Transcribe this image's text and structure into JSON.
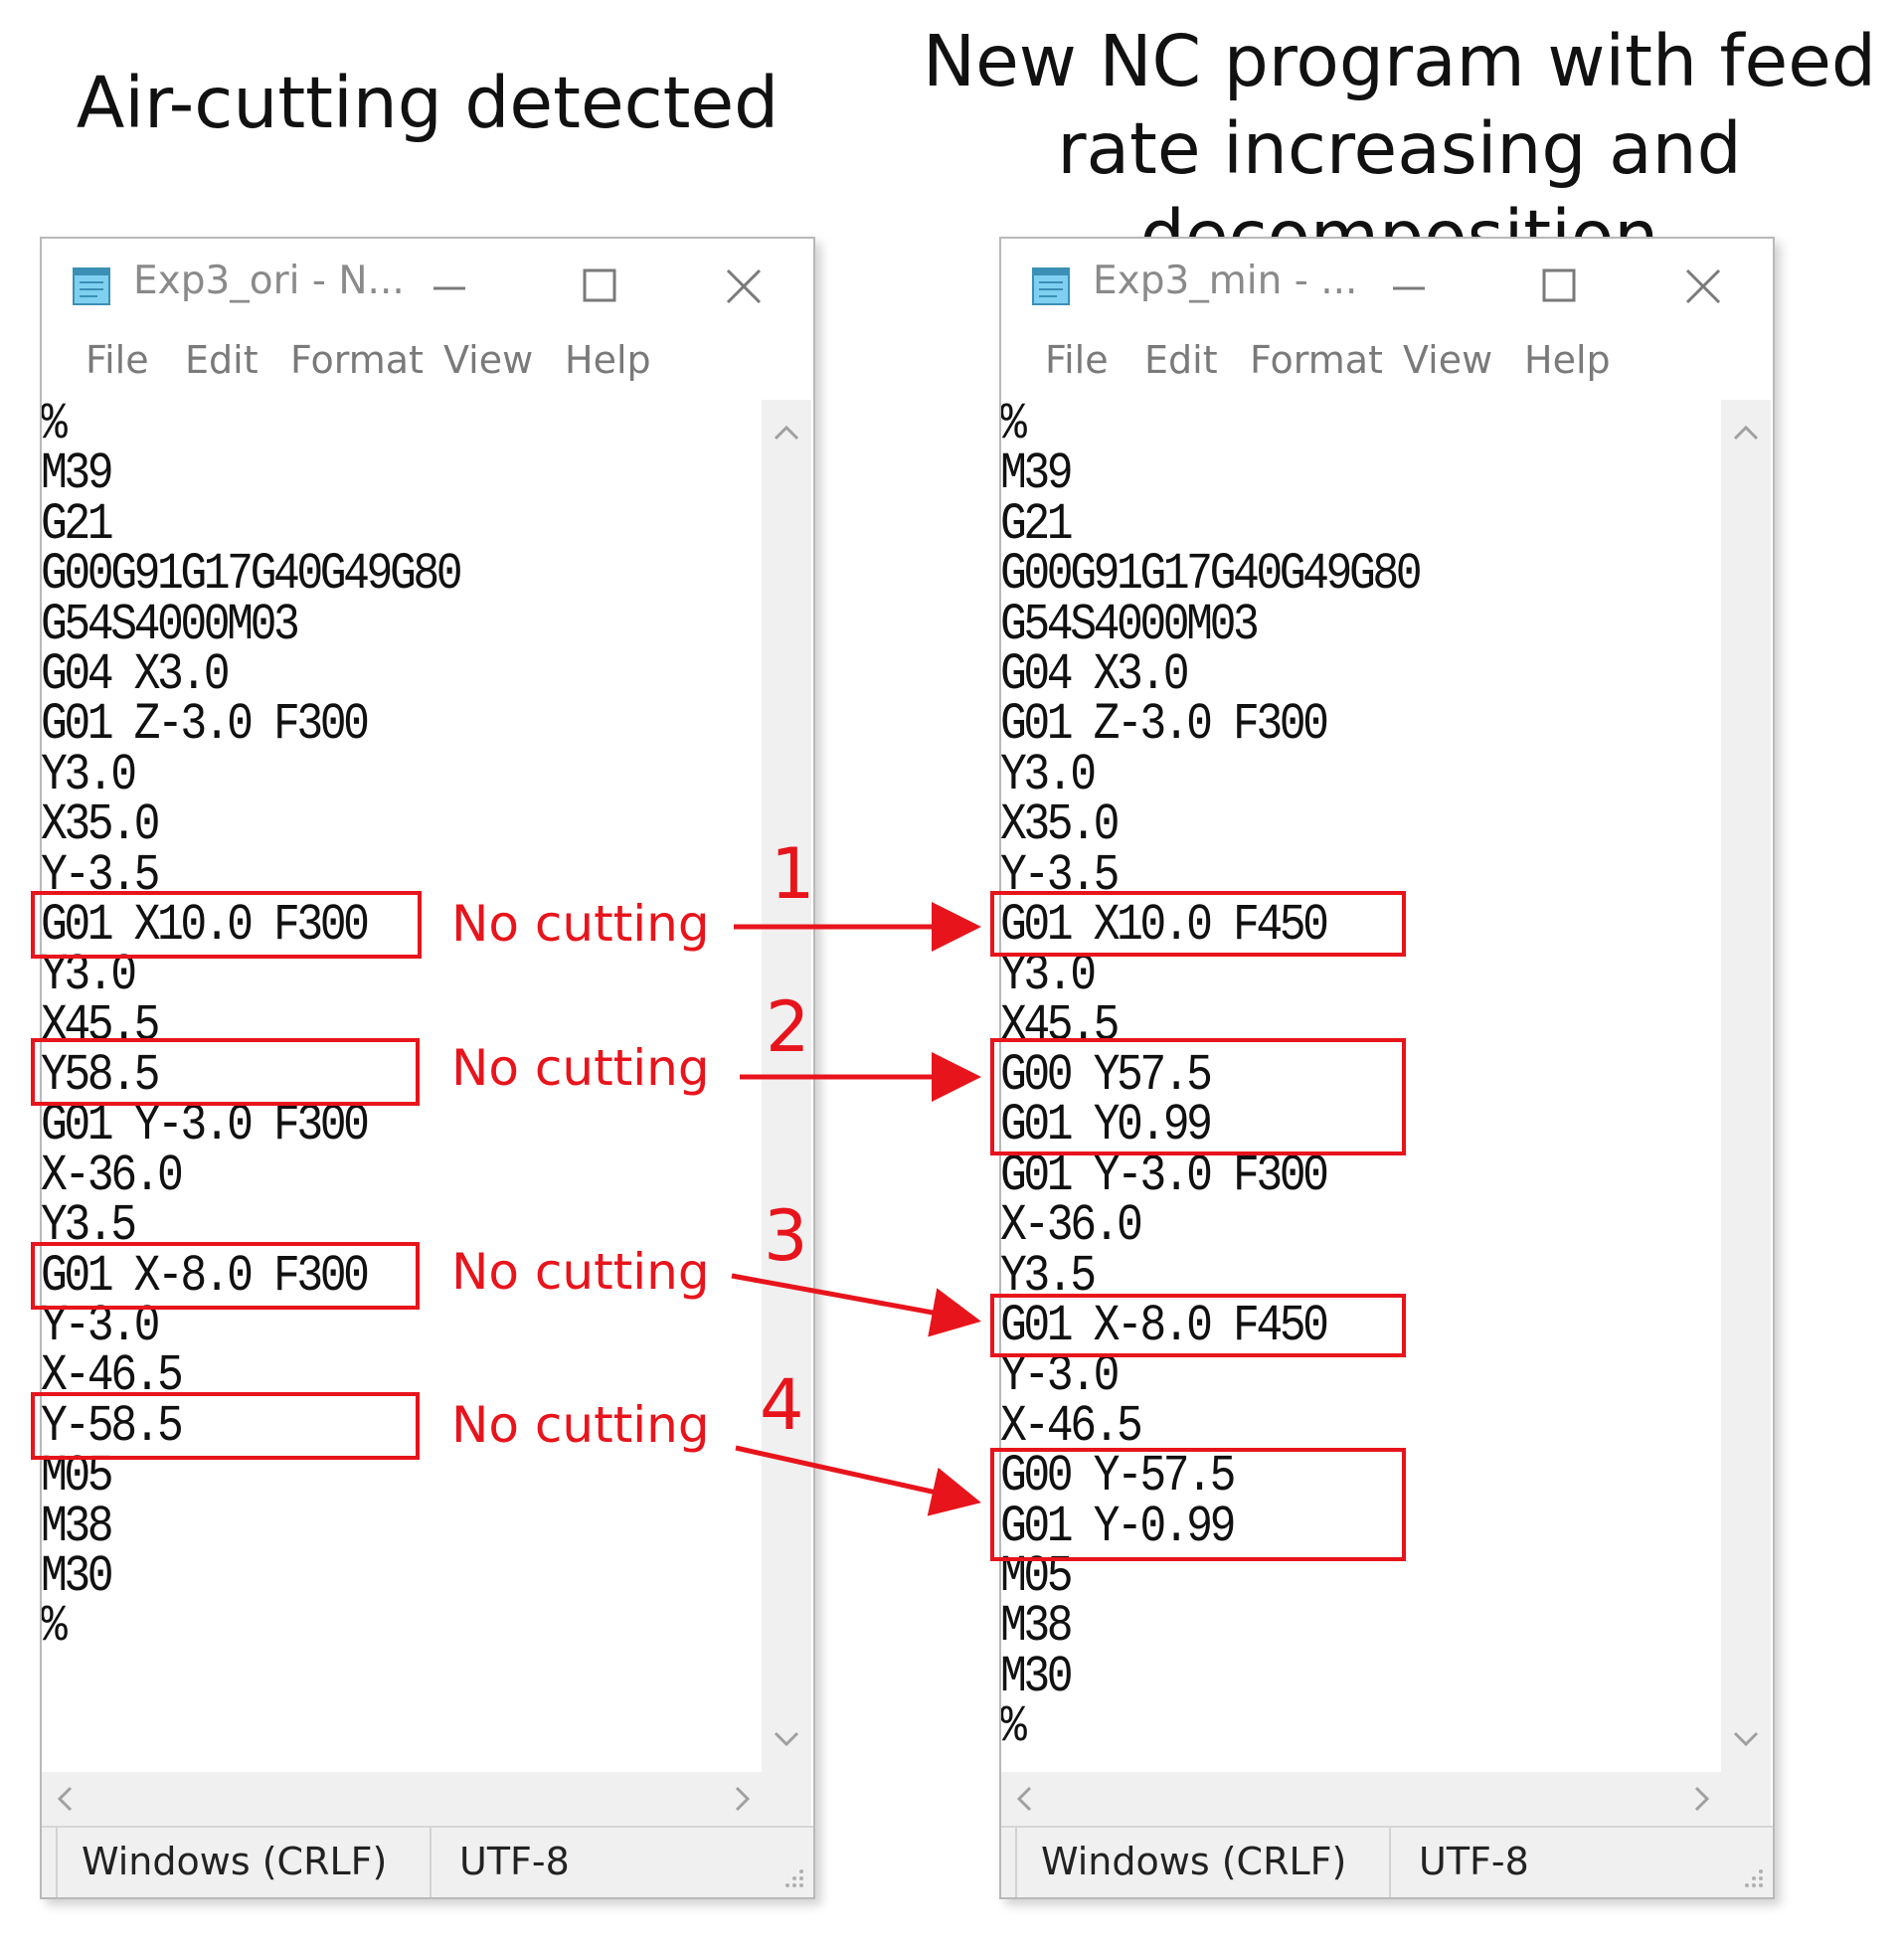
{
  "headings": {
    "left": "Air-cutting detected",
    "right": "New NC program with feed rate increasing and decomposition"
  },
  "left_window": {
    "title": "Exp3_ori - N...",
    "menu": [
      "File",
      "Edit",
      "Format",
      "View",
      "Help"
    ],
    "lines": [
      "%",
      "M39",
      "G21",
      "G00G91G17G40G49G80",
      "G54S4000M03",
      "G04 X3.0",
      "G01 Z-3.0 F300",
      "Y3.0",
      "X35.0",
      "Y-3.5",
      "G01 X10.0 F300",
      "Y3.0",
      "X45.5",
      "Y58.5",
      "G01 Y-3.0 F300",
      "X-36.0",
      "Y3.5",
      "G01 X-8.0 F300",
      "Y-3.0",
      "X-46.5",
      "Y-58.5",
      "M05",
      "M38",
      "M30",
      "%"
    ],
    "status": {
      "line_ending": "Windows (CRLF)",
      "encoding": "UTF-8"
    }
  },
  "right_window": {
    "title": "Exp3_min - ...",
    "menu": [
      "File",
      "Edit",
      "Format",
      "View",
      "Help"
    ],
    "lines": [
      "%",
      "M39",
      "G21",
      "G00G91G17G40G49G80",
      "G54S4000M03",
      "G04 X3.0",
      "G01 Z-3.0 F300",
      "Y3.0",
      "X35.0",
      "Y-3.5",
      "G01 X10.0 F450",
      "Y3.0",
      "X45.5",
      "G00 Y57.5",
      "G01 Y0.99",
      "G01 Y-3.0 F300",
      "X-36.0",
      "Y3.5",
      "G01 X-8.0 F450",
      "Y-3.0",
      "X-46.5",
      "G00 Y-57.5",
      "G01 Y-0.99",
      "M05",
      "M38",
      "M30",
      "%"
    ],
    "status": {
      "line_ending": "Windows (CRLF)",
      "encoding": "UTF-8"
    }
  },
  "annotations": [
    {
      "number": "1",
      "label": "No cutting"
    },
    {
      "number": "2",
      "label": "No cutting"
    },
    {
      "number": "3",
      "label": "No cutting"
    },
    {
      "number": "4",
      "label": "No cutting"
    }
  ],
  "colors": {
    "highlight": "#e8141c",
    "window_border": "#b9b9b9",
    "status_bar": "#f0f0f0"
  },
  "icons": [
    "notepad-icon",
    "minimize-icon",
    "maximize-icon",
    "close-icon",
    "scroll-up-icon",
    "scroll-down-icon",
    "scroll-left-icon",
    "scroll-right-icon",
    "resize-grip-icon"
  ]
}
